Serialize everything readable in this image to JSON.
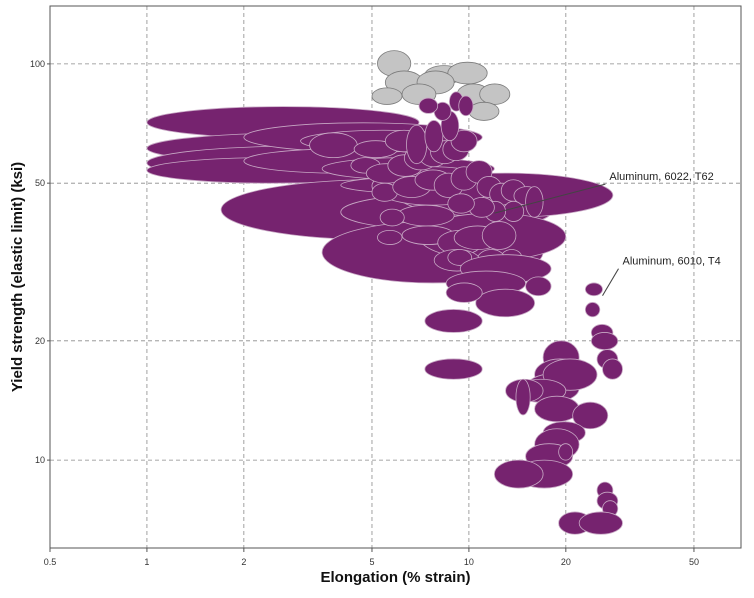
{
  "chart_data": {
    "type": "scatter",
    "title": "",
    "xlabel": "Elongation (% strain)",
    "ylabel": "Yield strength (elastic limit) (ksi)",
    "xscale": "log",
    "yscale": "log",
    "xlim": [
      0.5,
      70
    ],
    "ylim": [
      6,
      140
    ],
    "grid": true,
    "legend": "none",
    "colors": {
      "primary": "#76236f",
      "secondary": "#c4c4c4"
    },
    "x_ticks": [
      "0.5",
      "1",
      "2",
      "5",
      "10",
      "20",
      "50"
    ],
    "x_tick_values": [
      0.5,
      1,
      2,
      5,
      10,
      20,
      50
    ],
    "y_ticks": [
      "10",
      "20",
      "50",
      "100"
    ],
    "y_tick_values": [
      10,
      20,
      50,
      100
    ],
    "annotations": [
      {
        "text": "Aluminum, 6022, T62",
        "x": 12,
        "y": 42
      },
      {
        "text": "Aluminum, 6010, T4",
        "x": 26,
        "y": 26
      }
    ],
    "series": [
      {
        "color": "#c4c4c4",
        "bubbles": [
          {
            "x1": 5.2,
            "x2": 6.6,
            "y1": 93,
            "y2": 108
          },
          {
            "x1": 7.3,
            "x2": 9.6,
            "y1": 89,
            "y2": 99
          },
          {
            "x1": 8.6,
            "x2": 11.4,
            "y1": 89,
            "y2": 101
          },
          {
            "x1": 5.5,
            "x2": 7.2,
            "y1": 84,
            "y2": 96
          },
          {
            "x1": 6.9,
            "x2": 9.0,
            "y1": 84,
            "y2": 96
          },
          {
            "x1": 9.2,
            "x2": 11.6,
            "y1": 79,
            "y2": 89
          },
          {
            "x1": 10.8,
            "x2": 13.4,
            "y1": 79,
            "y2": 89
          },
          {
            "x1": 5.0,
            "x2": 6.2,
            "y1": 79,
            "y2": 87
          },
          {
            "x1": 6.2,
            "x2": 7.9,
            "y1": 79,
            "y2": 89
          },
          {
            "x1": 10.0,
            "x2": 12.4,
            "y1": 72,
            "y2": 80
          }
        ]
      },
      {
        "color": "#76236f",
        "bubbles": [
          {
            "x1": 1.0,
            "x2": 7.0,
            "y1": 65,
            "y2": 78
          },
          {
            "x1": 1.0,
            "x2": 10.0,
            "y1": 56,
            "y2": 67
          },
          {
            "x1": 1.0,
            "x2": 9.0,
            "y1": 51,
            "y2": 62
          },
          {
            "x1": 1.0,
            "x2": 6.0,
            "y1": 50,
            "y2": 58
          },
          {
            "x1": 2.0,
            "x2": 11.0,
            "y1": 60,
            "y2": 71
          },
          {
            "x1": 2.0,
            "x2": 8.0,
            "y1": 53,
            "y2": 61
          },
          {
            "x1": 3.0,
            "x2": 10.0,
            "y1": 60,
            "y2": 68
          },
          {
            "x1": 3.5,
            "x2": 12.0,
            "y1": 51,
            "y2": 58
          },
          {
            "x1": 1.7,
            "x2": 16.0,
            "y1": 36,
            "y2": 51
          },
          {
            "x1": 4.0,
            "x2": 18.0,
            "y1": 38,
            "y2": 47
          },
          {
            "x1": 4.0,
            "x2": 14.0,
            "y1": 47,
            "y2": 52
          },
          {
            "x1": 6.0,
            "x2": 28.0,
            "y1": 41,
            "y2": 53
          },
          {
            "x1": 3.5,
            "x2": 17.0,
            "y1": 28,
            "y2": 40
          },
          {
            "x1": 7.0,
            "x2": 20.0,
            "y1": 32,
            "y2": 42
          },
          {
            "x1": 5.0,
            "x2": 12.0,
            "y1": 44,
            "y2": 55
          },
          {
            "x1": 3.2,
            "x2": 4.5,
            "y1": 58,
            "y2": 67
          },
          {
            "x1": 4.4,
            "x2": 6.0,
            "y1": 58,
            "y2": 64
          },
          {
            "x1": 5.5,
            "x2": 7.2,
            "y1": 60,
            "y2": 68
          },
          {
            "x1": 4.3,
            "x2": 5.3,
            "y1": 53,
            "y2": 58
          },
          {
            "x1": 4.8,
            "x2": 6.4,
            "y1": 50,
            "y2": 56
          },
          {
            "x1": 5.6,
            "x2": 7.2,
            "y1": 52,
            "y2": 59
          },
          {
            "x1": 6.3,
            "x2": 8.0,
            "y1": 54,
            "y2": 62
          },
          {
            "x1": 7.0,
            "x2": 8.6,
            "y1": 55,
            "y2": 63
          },
          {
            "x1": 7.6,
            "x2": 9.3,
            "y1": 56,
            "y2": 64
          },
          {
            "x1": 8.3,
            "x2": 10.0,
            "y1": 57,
            "y2": 65
          },
          {
            "x1": 8.8,
            "x2": 10.6,
            "y1": 60,
            "y2": 68
          },
          {
            "x1": 6.4,
            "x2": 7.4,
            "y1": 56,
            "y2": 70
          },
          {
            "x1": 7.3,
            "x2": 8.3,
            "y1": 60,
            "y2": 72
          },
          {
            "x1": 8.2,
            "x2": 9.3,
            "y1": 64,
            "y2": 76
          },
          {
            "x1": 7.8,
            "x2": 8.8,
            "y1": 72,
            "y2": 80
          },
          {
            "x1": 8.7,
            "x2": 9.6,
            "y1": 76,
            "y2": 85
          },
          {
            "x1": 9.3,
            "x2": 10.3,
            "y1": 74,
            "y2": 83
          },
          {
            "x1": 7.0,
            "x2": 8.0,
            "y1": 75,
            "y2": 82
          },
          {
            "x1": 5.0,
            "x2": 6.0,
            "y1": 45,
            "y2": 50
          },
          {
            "x1": 5.8,
            "x2": 7.6,
            "y1": 46,
            "y2": 52
          },
          {
            "x1": 6.8,
            "x2": 8.8,
            "y1": 48,
            "y2": 54
          },
          {
            "x1": 7.8,
            "x2": 9.6,
            "y1": 46,
            "y2": 53
          },
          {
            "x1": 8.8,
            "x2": 10.6,
            "y1": 48,
            "y2": 55
          },
          {
            "x1": 9.8,
            "x2": 11.8,
            "y1": 50,
            "y2": 57
          },
          {
            "x1": 10.6,
            "x2": 12.6,
            "y1": 46,
            "y2": 52
          },
          {
            "x1": 11.6,
            "x2": 13.8,
            "y1": 44,
            "y2": 50
          },
          {
            "x1": 12.6,
            "x2": 15.0,
            "y1": 45,
            "y2": 51
          },
          {
            "x1": 13.8,
            "x2": 16.6,
            "y1": 44,
            "y2": 49
          },
          {
            "x1": 15.0,
            "x2": 17.0,
            "y1": 41,
            "y2": 49
          },
          {
            "x1": 12.8,
            "x2": 14.8,
            "y1": 40,
            "y2": 45
          },
          {
            "x1": 11.2,
            "x2": 13.0,
            "y1": 40,
            "y2": 45
          },
          {
            "x1": 10.0,
            "x2": 12.0,
            "y1": 41,
            "y2": 46
          },
          {
            "x1": 8.6,
            "x2": 10.4,
            "y1": 42,
            "y2": 47
          },
          {
            "x1": 6.0,
            "x2": 9.0,
            "y1": 39,
            "y2": 44
          },
          {
            "x1": 5.3,
            "x2": 6.3,
            "y1": 39,
            "y2": 43
          },
          {
            "x1": 5.2,
            "x2": 6.2,
            "y1": 35,
            "y2": 38
          },
          {
            "x1": 6.2,
            "x2": 9.0,
            "y1": 35,
            "y2": 39
          },
          {
            "x1": 8.0,
            "x2": 11.0,
            "y1": 33,
            "y2": 38
          },
          {
            "x1": 9.0,
            "x2": 12.6,
            "y1": 34,
            "y2": 39
          },
          {
            "x1": 11.0,
            "x2": 14.0,
            "y1": 34,
            "y2": 40
          },
          {
            "x1": 12.6,
            "x2": 14.6,
            "y1": 31,
            "y2": 34
          },
          {
            "x1": 10.6,
            "x2": 13.0,
            "y1": 30,
            "y2": 34
          },
          {
            "x1": 7.8,
            "x2": 10.8,
            "y1": 30,
            "y2": 34
          },
          {
            "x1": 8.6,
            "x2": 10.2,
            "y1": 31,
            "y2": 34
          },
          {
            "x1": 9.4,
            "x2": 18.0,
            "y1": 28,
            "y2": 33
          },
          {
            "x1": 8.5,
            "x2": 15.0,
            "y1": 26,
            "y2": 30
          },
          {
            "x1": 10.5,
            "x2": 16.0,
            "y1": 23,
            "y2": 27
          },
          {
            "x1": 15.0,
            "x2": 18.0,
            "y1": 26,
            "y2": 29
          },
          {
            "x1": 8.5,
            "x2": 11.0,
            "y1": 25,
            "y2": 28
          },
          {
            "x1": 7.3,
            "x2": 11.0,
            "y1": 21,
            "y2": 24
          },
          {
            "x1": 7.3,
            "x2": 11.0,
            "y1": 16,
            "y2": 18
          },
          {
            "x1": 23.0,
            "x2": 26.0,
            "y1": 26,
            "y2": 28
          },
          {
            "x1": 23.0,
            "x2": 25.5,
            "y1": 23,
            "y2": 25
          },
          {
            "x1": 24.0,
            "x2": 28.0,
            "y1": 20,
            "y2": 22
          },
          {
            "x1": 24.0,
            "x2": 29.0,
            "y1": 19,
            "y2": 21
          },
          {
            "x1": 25.0,
            "x2": 29.0,
            "y1": 17,
            "y2": 19
          },
          {
            "x1": 26.0,
            "x2": 30.0,
            "y1": 16,
            "y2": 18
          },
          {
            "x1": 17.0,
            "x2": 22.0,
            "y1": 16.5,
            "y2": 20
          },
          {
            "x1": 16.0,
            "x2": 23.0,
            "y1": 15,
            "y2": 18
          },
          {
            "x1": 15.0,
            "x2": 22.0,
            "y1": 14,
            "y2": 16.5
          },
          {
            "x1": 17.0,
            "x2": 25.0,
            "y1": 15,
            "y2": 18
          },
          {
            "x1": 14.0,
            "x2": 20.0,
            "y1": 14,
            "y2": 16
          },
          {
            "x1": 13.0,
            "x2": 17.0,
            "y1": 14,
            "y2": 16
          },
          {
            "x1": 14.0,
            "x2": 15.5,
            "y1": 13,
            "y2": 16
          },
          {
            "x1": 16.0,
            "x2": 22.0,
            "y1": 12.5,
            "y2": 14.5
          },
          {
            "x1": 21.0,
            "x2": 27.0,
            "y1": 12,
            "y2": 14
          },
          {
            "x1": 17.0,
            "x2": 23.0,
            "y1": 11,
            "y2": 12.5
          },
          {
            "x1": 16.0,
            "x2": 22.0,
            "y1": 10,
            "y2": 12
          },
          {
            "x1": 15.0,
            "x2": 21.0,
            "y1": 9.5,
            "y2": 11
          },
          {
            "x1": 14.0,
            "x2": 21.0,
            "y1": 8.5,
            "y2": 10
          },
          {
            "x1": 12.0,
            "x2": 17.0,
            "y1": 8.5,
            "y2": 10
          },
          {
            "x1": 19.0,
            "x2": 21.0,
            "y1": 10,
            "y2": 11
          },
          {
            "x1": 25.0,
            "x2": 28.0,
            "y1": 8,
            "y2": 8.8
          },
          {
            "x1": 25.0,
            "x2": 29.0,
            "y1": 7.5,
            "y2": 8.3
          },
          {
            "x1": 26.0,
            "x2": 29.0,
            "y1": 7.2,
            "y2": 7.9
          },
          {
            "x1": 19.0,
            "x2": 24.0,
            "y1": 6.5,
            "y2": 7.4
          },
          {
            "x1": 22.0,
            "x2": 30.0,
            "y1": 6.5,
            "y2": 7.4
          }
        ]
      }
    ]
  }
}
